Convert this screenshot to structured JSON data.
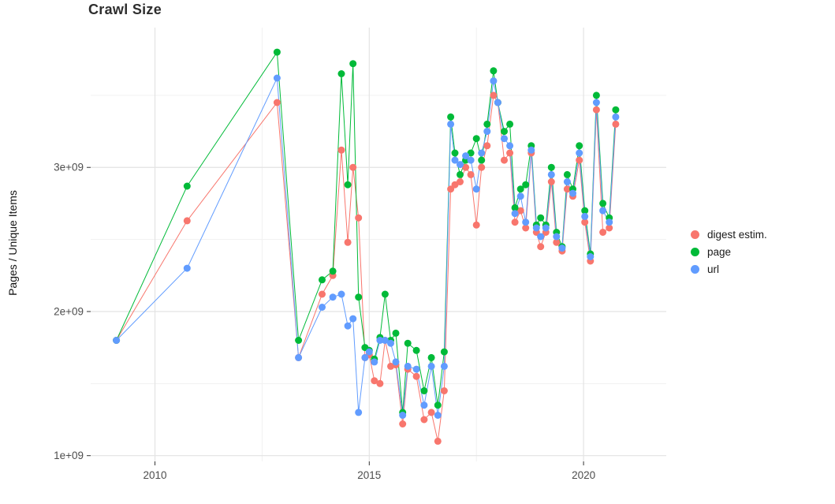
{
  "chart_data": {
    "type": "line",
    "title": "Crawl Size",
    "xlabel": "",
    "ylabel": "Pages / Unique Items",
    "value_unit": "1e9 (billions of pages / unique items)",
    "legend_position": "right",
    "grid": true,
    "marker": "circle",
    "marker_radius": 4.5,
    "xlim": [
      2008.5,
      2021.93
    ],
    "ylim": [
      0.96,
      3.97
    ],
    "x_major_gridlines": [
      2010,
      2015,
      2020
    ],
    "x_minor_gridlines": [
      2012.5,
      2017.5
    ],
    "y_major_gridlines": [
      1,
      2,
      3
    ],
    "y_minor_gridlines": [
      1.5,
      2.5,
      3.5
    ],
    "x_ticks": [
      {
        "value": 2010,
        "label": "2010"
      },
      {
        "value": 2015,
        "label": "2015"
      },
      {
        "value": 2020,
        "label": "2020"
      }
    ],
    "y_ticks": [
      {
        "value": 1,
        "label": "1e+09"
      },
      {
        "value": 2,
        "label": "2e+09"
      },
      {
        "value": 3,
        "label": "3e+09"
      }
    ],
    "x": [
      2009.1,
      2010.75,
      2012.85,
      2013.35,
      2013.9,
      2014.15,
      2014.35,
      2014.5,
      2014.62,
      2014.75,
      2014.9,
      2015.0,
      2015.12,
      2015.25,
      2015.37,
      2015.5,
      2015.62,
      2015.78,
      2015.9,
      2016.1,
      2016.28,
      2016.45,
      2016.6,
      2016.75,
      2016.9,
      2017.0,
      2017.12,
      2017.25,
      2017.37,
      2017.5,
      2017.62,
      2017.75,
      2017.9,
      2018.0,
      2018.15,
      2018.28,
      2018.4,
      2018.53,
      2018.65,
      2018.78,
      2018.9,
      2019.0,
      2019.12,
      2019.25,
      2019.37,
      2019.5,
      2019.62,
      2019.75,
      2019.9,
      2020.03,
      2020.16,
      2020.3,
      2020.45,
      2020.6,
      2020.75
    ],
    "series": [
      {
        "name": "digest estim.",
        "color": "#F8766D",
        "values": [
          1.8,
          2.63,
          3.45,
          1.68,
          2.12,
          2.25,
          3.12,
          2.48,
          3.0,
          2.65,
          1.68,
          1.7,
          1.52,
          1.5,
          1.8,
          1.62,
          1.63,
          1.22,
          1.6,
          1.55,
          1.25,
          1.3,
          1.1,
          1.45,
          2.85,
          2.88,
          2.9,
          3.0,
          2.95,
          2.6,
          3.0,
          3.15,
          3.5,
          3.45,
          3.05,
          3.1,
          2.62,
          2.7,
          2.58,
          3.1,
          2.55,
          2.45,
          2.55,
          2.9,
          2.48,
          2.42,
          2.85,
          2.8,
          3.05,
          2.62,
          2.35,
          3.4,
          2.55,
          2.58,
          3.3
        ]
      },
      {
        "name": "page",
        "color": "#00BA38",
        "values": [
          1.8,
          2.87,
          3.8,
          1.8,
          2.22,
          2.28,
          3.65,
          2.88,
          3.72,
          2.1,
          1.75,
          1.73,
          1.67,
          1.82,
          2.12,
          1.8,
          1.85,
          1.3,
          1.78,
          1.73,
          1.45,
          1.68,
          1.35,
          1.72,
          3.35,
          3.1,
          2.95,
          3.05,
          3.1,
          3.2,
          3.05,
          3.3,
          3.67,
          3.45,
          3.25,
          3.3,
          2.72,
          2.85,
          2.88,
          3.15,
          2.6,
          2.65,
          2.6,
          3.0,
          2.55,
          2.45,
          2.95,
          2.85,
          3.15,
          2.7,
          2.4,
          3.5,
          2.75,
          2.65,
          3.4
        ]
      },
      {
        "name": "url",
        "color": "#619CFF",
        "values": [
          1.8,
          2.3,
          3.62,
          1.68,
          2.03,
          2.1,
          2.12,
          1.9,
          1.95,
          1.3,
          1.68,
          1.72,
          1.65,
          1.8,
          1.8,
          1.78,
          1.65,
          1.28,
          1.62,
          1.6,
          1.35,
          1.62,
          1.28,
          1.62,
          3.3,
          3.05,
          3.02,
          3.08,
          3.05,
          2.85,
          3.1,
          3.25,
          3.6,
          3.45,
          3.2,
          3.15,
          2.68,
          2.8,
          2.62,
          3.12,
          2.58,
          2.52,
          2.58,
          2.95,
          2.52,
          2.44,
          2.9,
          2.82,
          3.1,
          2.66,
          2.38,
          3.45,
          2.7,
          2.62,
          3.35
        ]
      }
    ]
  },
  "style": {
    "panel_background": "#ffffff",
    "major_grid_color": "#e3e3e3",
    "minor_grid_color": "#f1f1f1",
    "tick_color": "#333333",
    "tick_label_color": "#4d4d4d"
  }
}
